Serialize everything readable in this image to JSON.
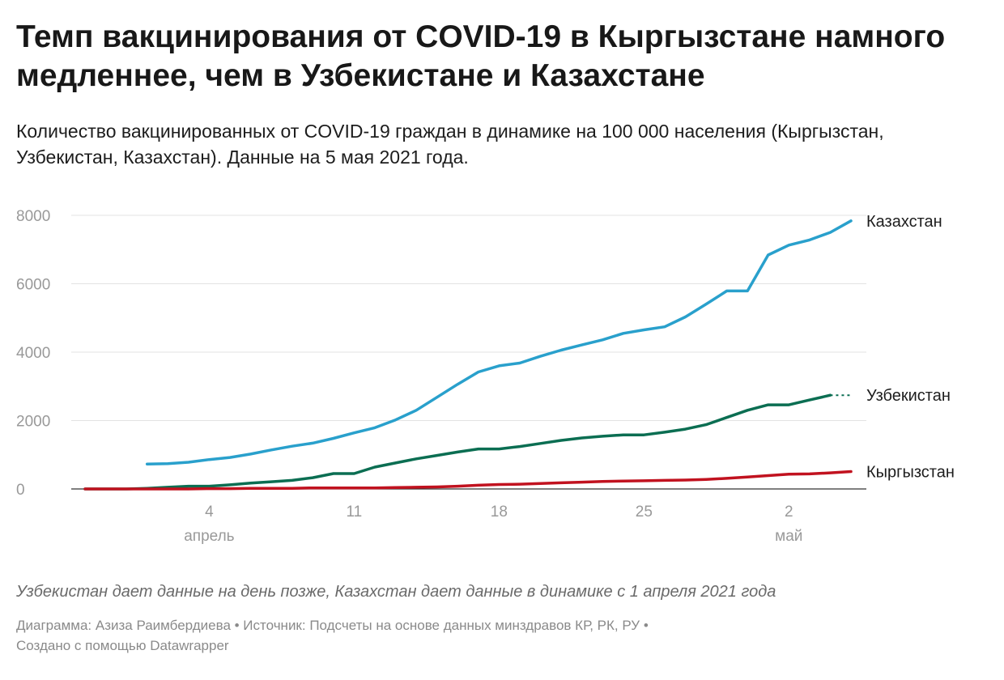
{
  "chart_data": {
    "type": "line",
    "title": "Темп вакцинирования от COVID-19 в Кыргызстане намного медленнее, чем в Узбекистане и Казахстане",
    "subtitle": "Количество вакцинированных от COVID-19 граждан в динамике на 100 000 населения (Кыргызстан, Узбекистан, Казахстан). Данные на 5 мая 2021 года.",
    "xlabel": "",
    "ylabel": "",
    "ylim": [
      0,
      8000
    ],
    "yticks": [
      0,
      2000,
      4000,
      6000,
      8000
    ],
    "grid": true,
    "x_ticks": [
      {
        "date": "2021-04-04",
        "label": "4",
        "month": "апрель"
      },
      {
        "date": "2021-04-11",
        "label": "11",
        "month": ""
      },
      {
        "date": "2021-04-18",
        "label": "18",
        "month": ""
      },
      {
        "date": "2021-04-25",
        "label": "25",
        "month": ""
      },
      {
        "date": "2021-05-02",
        "label": "2",
        "month": "май"
      }
    ],
    "x": [
      "2021-03-29",
      "2021-03-30",
      "2021-03-31",
      "2021-04-01",
      "2021-04-02",
      "2021-04-03",
      "2021-04-04",
      "2021-04-05",
      "2021-04-06",
      "2021-04-07",
      "2021-04-08",
      "2021-04-09",
      "2021-04-10",
      "2021-04-11",
      "2021-04-12",
      "2021-04-13",
      "2021-04-14",
      "2021-04-15",
      "2021-04-16",
      "2021-04-17",
      "2021-04-18",
      "2021-04-19",
      "2021-04-20",
      "2021-04-21",
      "2021-04-22",
      "2021-04-23",
      "2021-04-24",
      "2021-04-25",
      "2021-04-26",
      "2021-04-27",
      "2021-04-28",
      "2021-04-29",
      "2021-04-30",
      "2021-05-01",
      "2021-05-02",
      "2021-05-03",
      "2021-05-04",
      "2021-05-05"
    ],
    "series": [
      {
        "name": "Казахстан",
        "color": "#29a0cc",
        "values": [
          null,
          null,
          null,
          730,
          740,
          780,
          860,
          920,
          1020,
          1140,
          1250,
          1340,
          1480,
          1640,
          1790,
          2020,
          2300,
          2680,
          3060,
          3420,
          3600,
          3680,
          3880,
          4060,
          4210,
          4360,
          4550,
          4650,
          4740,
          5030,
          5400,
          5790,
          5790,
          6840,
          7130,
          7280,
          7500,
          7840
        ]
      },
      {
        "name": "Узбекистан",
        "color": "#0b6e52",
        "values": [
          0,
          0,
          0,
          20,
          50,
          80,
          80,
          120,
          170,
          210,
          250,
          330,
          450,
          450,
          640,
          760,
          880,
          980,
          1080,
          1170,
          1170,
          1240,
          1330,
          1420,
          1490,
          1540,
          1580,
          1580,
          1660,
          1750,
          1880,
          2090,
          2300,
          2460,
          2460,
          2600,
          2740,
          null
        ],
        "extension": {
          "from": "2021-05-04",
          "to": "2021-05-05",
          "value": 2740,
          "style": "dotted"
        }
      },
      {
        "name": "Кыргызстан",
        "color": "#c1121f",
        "values": [
          0,
          0,
          0,
          0,
          0,
          0,
          10,
          10,
          20,
          20,
          20,
          30,
          30,
          30,
          30,
          40,
          50,
          60,
          80,
          110,
          130,
          140,
          160,
          180,
          200,
          220,
          230,
          240,
          250,
          260,
          280,
          310,
          350,
          390,
          430,
          440,
          470,
          510
        ]
      }
    ]
  },
  "note": "Узбекистан дает данные на день позже, Казахстан дает данные в динамике с 1 апреля 2021 года",
  "footer": {
    "line1": "Диаграмма: Азиза Раимбердиева • Источник: Подсчеты на основе данных минздравов КР, РК, РУ •",
    "line2": "Создано с помощью Datawrapper"
  }
}
